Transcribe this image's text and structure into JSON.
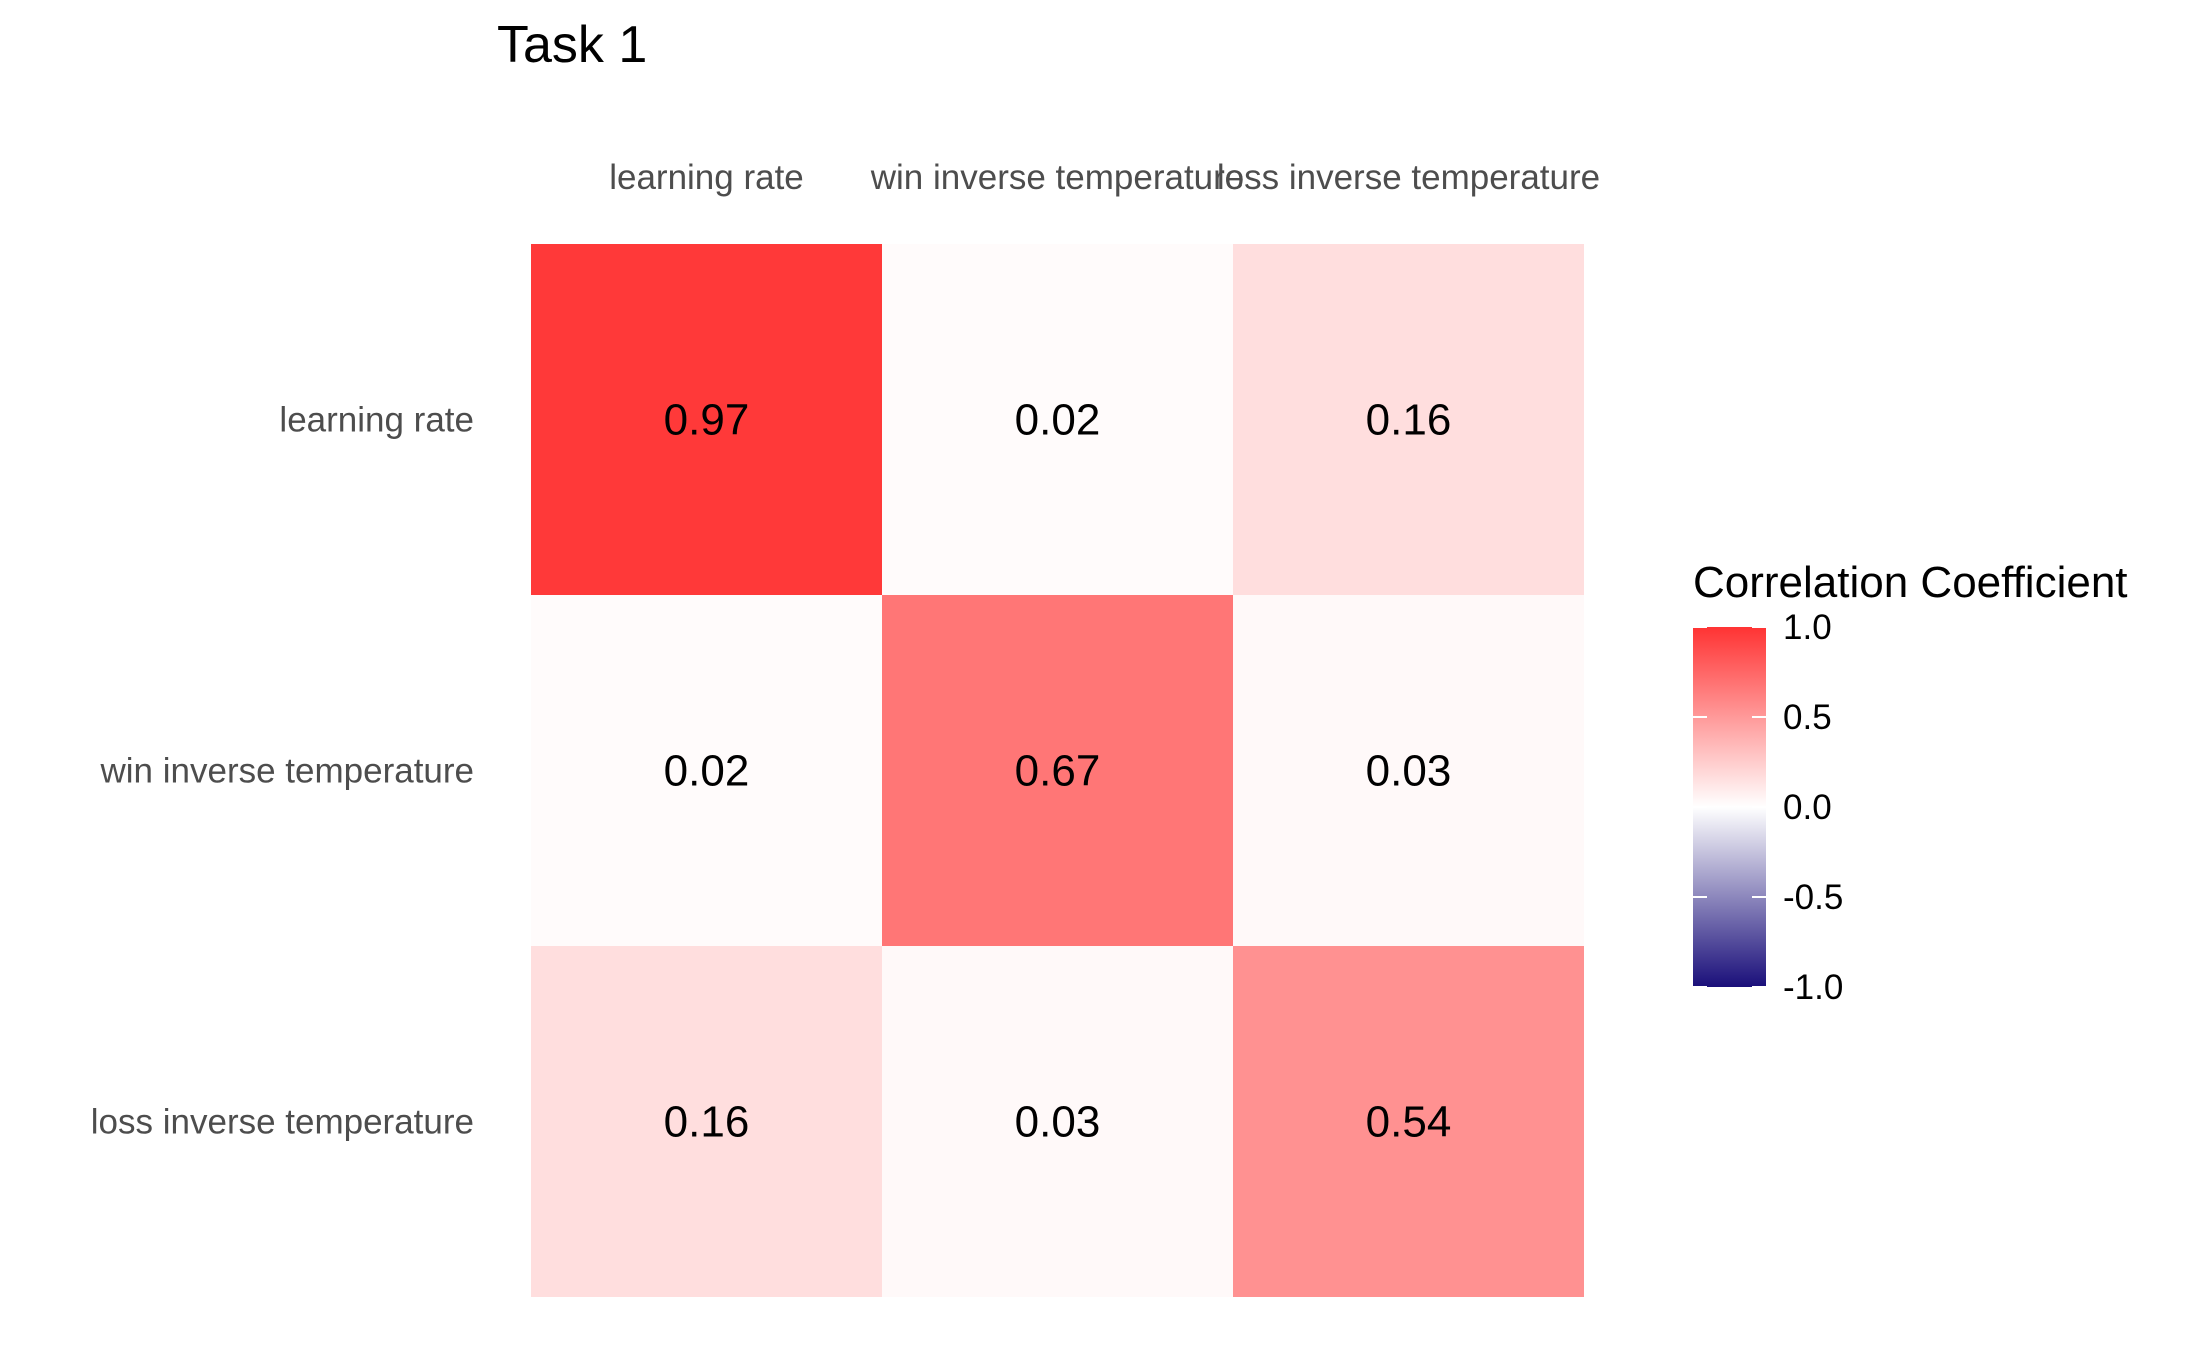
{
  "chart_data": {
    "type": "heatmap",
    "title": "Task 1",
    "columns": [
      "learning rate",
      "win inverse temperature",
      "loss inverse temperature"
    ],
    "rows": [
      "learning rate",
      "win inverse temperature",
      "loss inverse temperature"
    ],
    "values": [
      [
        0.97,
        0.02,
        0.16
      ],
      [
        0.02,
        0.67,
        0.03
      ],
      [
        0.16,
        0.03,
        0.54
      ]
    ],
    "value_labels": [
      [
        "0.97",
        "0.02",
        "0.16"
      ],
      [
        "0.02",
        "0.67",
        "0.03"
      ],
      [
        "0.16",
        "0.03",
        "0.54"
      ]
    ],
    "color_scale": {
      "low": "#1a0f7a",
      "mid": "#ffffff",
      "high": "#ff3333",
      "limits": [
        -1.0,
        1.0
      ]
    },
    "legend": {
      "title": "Correlation Coefficient",
      "placement": "right",
      "ticks": [
        1.0,
        0.5,
        0.0,
        -0.5,
        -1.0
      ],
      "tick_labels": [
        "1.0",
        "0.5",
        "0.0",
        "-0.5",
        "-1.0"
      ]
    },
    "column_label_position": "top"
  }
}
